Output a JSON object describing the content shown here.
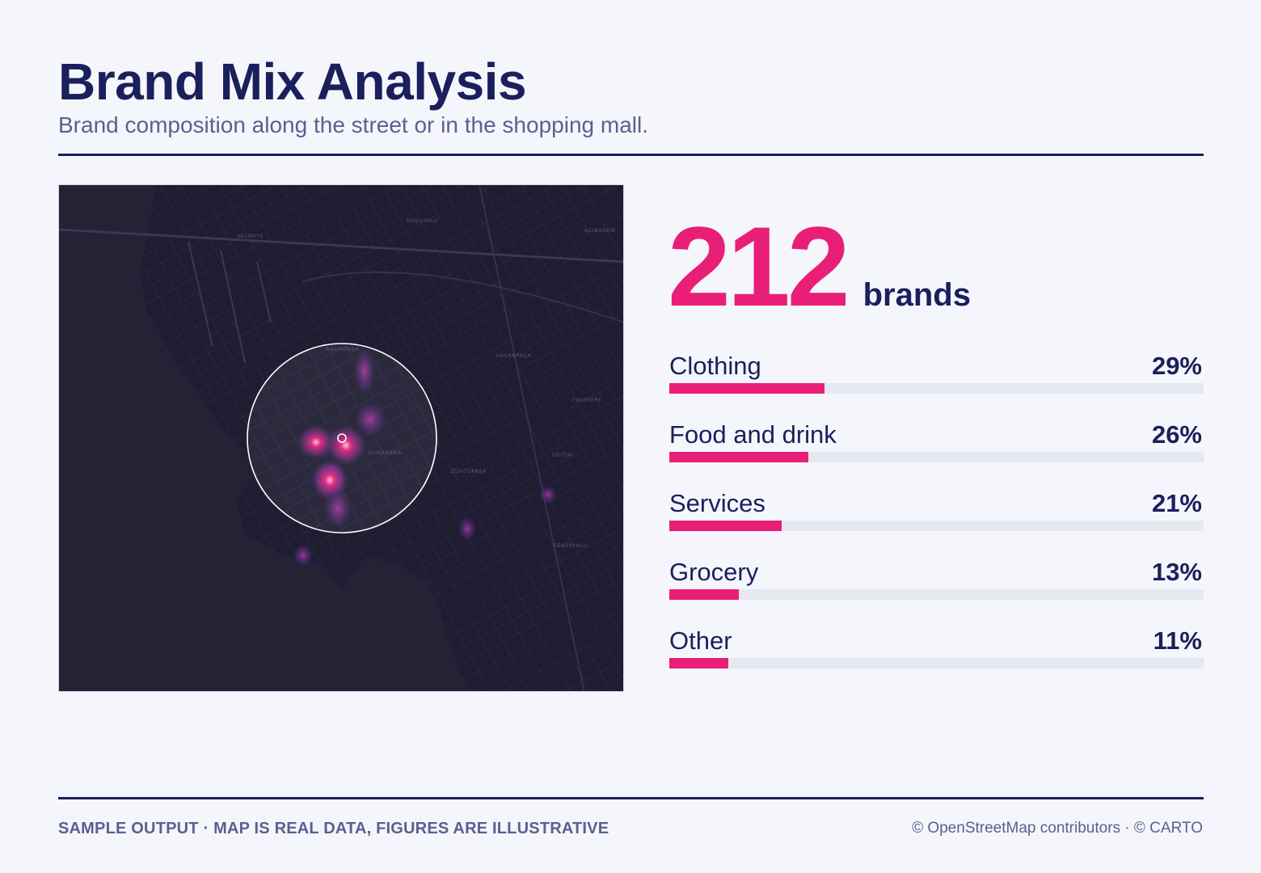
{
  "header": {
    "title": "Brand Mix Analysis",
    "subtitle": "Brand composition along the street or in the shopping mall."
  },
  "map": {
    "type": "dark-basemap-heatmap",
    "district_labels": [
      "KOŞUYOLU",
      "SELIMIYE",
      "ACIBADEM",
      "HASANPAŞA",
      "FIKIRTEPE",
      "EĞITIM",
      "ZÜHTÜPAŞA",
      "FENERYOLU",
      "RASIMPAŞA",
      "OSMANAĞA"
    ],
    "colors": {
      "background": "#1b1a2c",
      "roads": "#2c2a42",
      "heat": "#e91e77",
      "radius_ring": "#ffffff"
    }
  },
  "summary": {
    "count": "212",
    "unit": "brands"
  },
  "categories": [
    {
      "label": "Clothing",
      "pct_label": "29%",
      "value": 29
    },
    {
      "label": "Food and drink",
      "pct_label": "26%",
      "value": 26
    },
    {
      "label": "Services",
      "pct_label": "21%",
      "value": 21
    },
    {
      "label": "Grocery",
      "pct_label": "13%",
      "value": 13
    },
    {
      "label": "Other",
      "pct_label": "11%",
      "value": 11
    }
  ],
  "footer": {
    "left": "SAMPLE OUTPUT · MAP IS REAL DATA, FIGURES ARE ILLUSTRATIVE",
    "right": "© OpenStreetMap contributors · © CARTO"
  },
  "colors": {
    "accent": "#e91e77",
    "ink": "#1b1f5c",
    "muted": "#5a6091",
    "track": "#e6e8f1"
  }
}
